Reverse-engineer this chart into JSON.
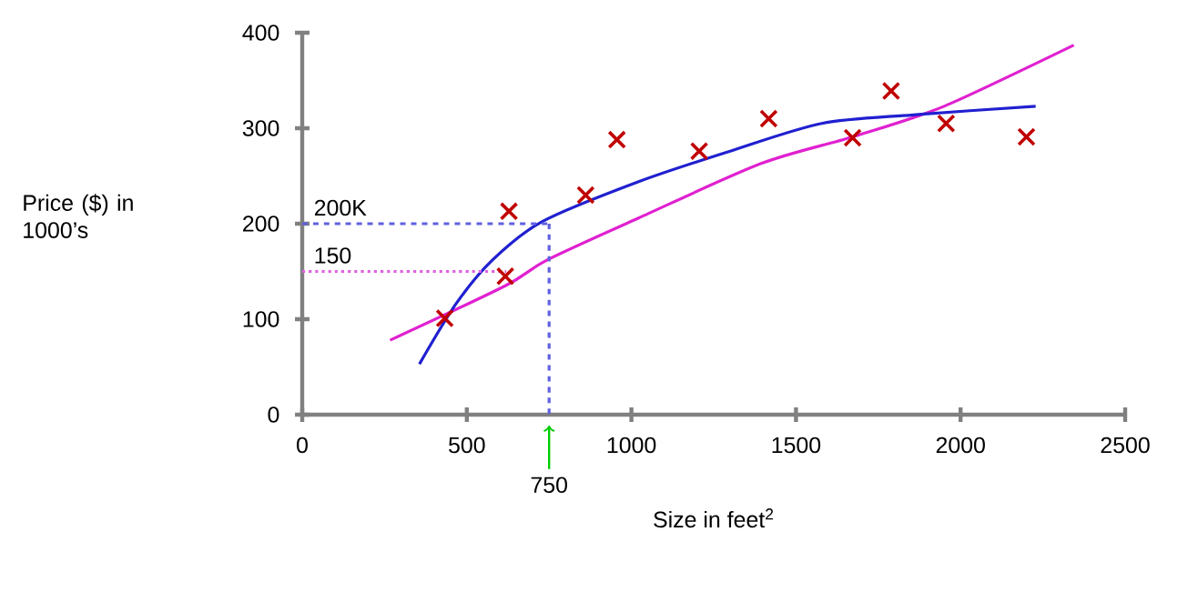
{
  "chart_data": {
    "type": "scatter",
    "xlabel": "Size in feet$^{2}$",
    "ylabel": "Price ($) in 1000’s",
    "xlim": [
      0,
      2500
    ],
    "ylim": [
      0,
      400
    ],
    "xticks": [
      0,
      500,
      1000,
      1500,
      2000,
      2500
    ],
    "yticks": [
      0,
      100,
      200,
      300,
      400
    ],
    "grid": false,
    "series": [
      {
        "type": "line",
        "color": "#e020d0",
        "marker": "none",
        "line_style": "solid",
        "x": [
          267,
          617,
          744,
          1022,
          1394,
          1672,
          1950,
          2344
        ],
        "values": [
          78,
          135,
          162,
          206,
          263,
          291,
          323,
          387
        ]
      },
      {
        "type": "line",
        "color": "#2020d0",
        "marker": "none",
        "line_style": "solid",
        "x": [
          356,
          467,
          578,
          728,
          1022,
          1300,
          1578,
          1856,
          2228
        ],
        "values": [
          53,
          116,
          162,
          202,
          244,
          276,
          305,
          314,
          323
        ]
      },
      {
        "type": "line",
        "color": "#6060e0",
        "marker": "none",
        "line_style": "dashed",
        "x": [
          0,
          750
        ],
        "values": [
          200,
          200
        ]
      },
      {
        "type": "line",
        "color": "#6060e0",
        "marker": "none",
        "line_style": "dashed",
        "x": [
          750,
          750
        ],
        "values": [
          200,
          0
        ]
      },
      {
        "type": "line",
        "color": "#e060e0",
        "marker": "none",
        "line_style": "dotted",
        "x": [
          0,
          620
        ],
        "values": [
          150,
          150
        ]
      },
      {
        "color": "#c00000",
        "marker": "cross",
        "x": [
          433,
          628,
          617,
          861,
          956,
          1206,
          1417,
          1672,
          1789,
          1956,
          2200
        ],
        "values": [
          101,
          213,
          145,
          230,
          288,
          276,
          310,
          290,
          339,
          305,
          291
        ]
      }
    ],
    "annotations": [
      {
        "text": "200K",
        "y": 200
      },
      {
        "text": "150",
        "y": 150
      },
      {
        "text": "750",
        "x": 750
      }
    ]
  }
}
